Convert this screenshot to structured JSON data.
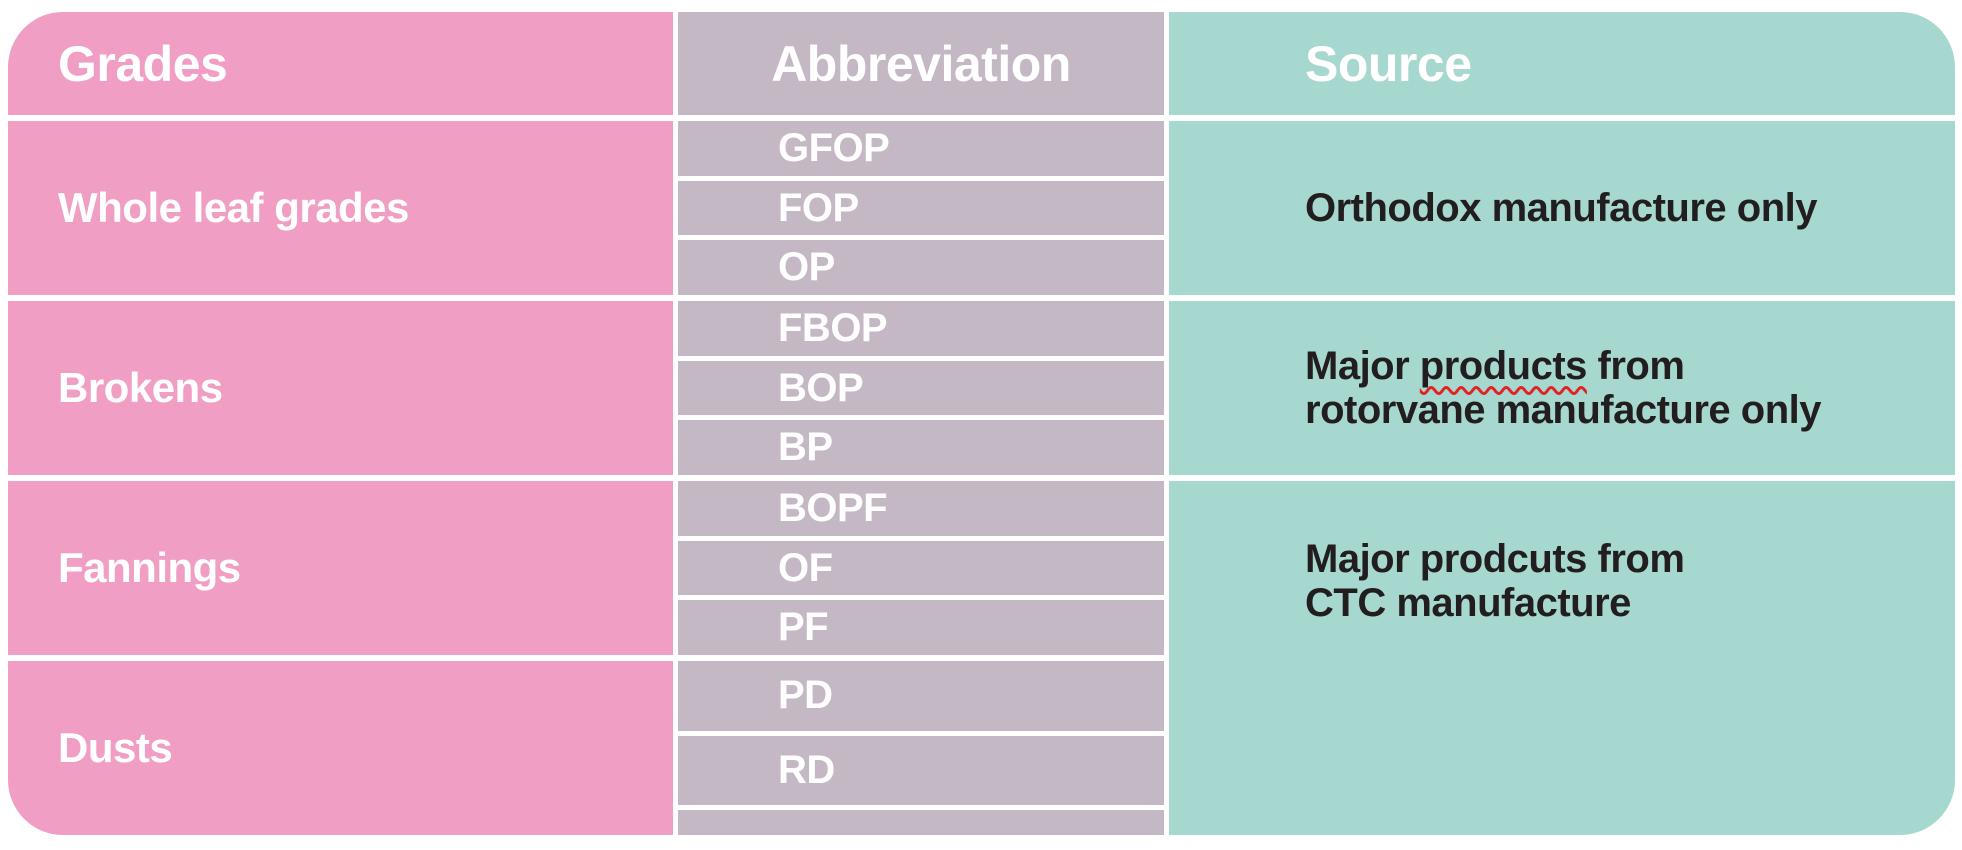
{
  "table": {
    "colors": {
      "grades_column": "#f09ec3",
      "abbreviation_column": "#c5b8c5",
      "source_column": "#a7d8cf",
      "header_text": "#ffffff",
      "light_cell_text": "#ffffff",
      "dark_cell_text": "#221e1f",
      "gutter": "#ffffff",
      "spellcheck_underline": "#e02424"
    },
    "headers": {
      "grades": "Grades",
      "abbreviation": "Abbreviation",
      "source": "Source"
    },
    "groups": [
      {
        "grade": "Whole leaf grades",
        "abbreviations": [
          "GFOP",
          "FOP",
          "OP"
        ],
        "source": {
          "line1": "Orthodox manufacture only",
          "line2": ""
        }
      },
      {
        "grade": "Brokens",
        "abbreviations": [
          "FBOP",
          "BOP",
          "BP"
        ],
        "source": {
          "line1_prefix": "Major ",
          "line1_misspelled": "products",
          "line1_suffix": " from",
          "line2": "rotorvane manufacture only"
        }
      },
      {
        "grade": "Fannings",
        "abbreviations": [
          "BOPF",
          "OF",
          "PF"
        ],
        "source": {
          "line1": "Major prodcuts from",
          "line2": "CTC manufacture"
        }
      },
      {
        "grade": "Dusts",
        "abbreviations": [
          "PD",
          "RD",
          ""
        ],
        "source": {
          "line1": "",
          "line2": ""
        }
      }
    ]
  }
}
